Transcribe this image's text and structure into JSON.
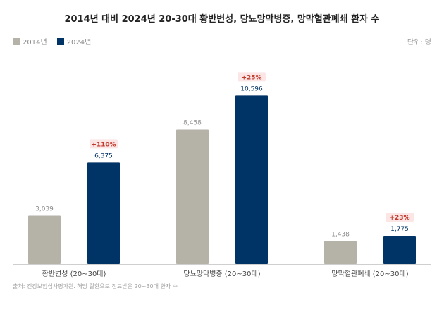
{
  "chart_data": {
    "type": "bar",
    "title": "2014년 대비 2024년 20-30대 황반변성, 당뇨망막병증, 망막혈관폐쇄 환자 수",
    "unit": "단위: 명",
    "categories": [
      "황반변성 (20~30대)",
      "당뇨망막병증 (20~30대)",
      "망막혈관폐쇄 (20~30대)"
    ],
    "series": [
      {
        "name": "2014년",
        "color": "#b5b2a8",
        "values": [
          3039,
          8458,
          1438
        ]
      },
      {
        "name": "2024년",
        "color": "#003366",
        "values": [
          6375,
          10596,
          1775
        ]
      }
    ],
    "value_labels": {
      "2014년": [
        "3,039",
        "8,458",
        "1,438"
      ],
      "2024년": [
        "6,375",
        "10,596",
        "1,775"
      ]
    },
    "changes": [
      "+110%",
      "+25%",
      "+23%"
    ],
    "ylim": [
      0,
      11500
    ],
    "grid": false,
    "legend_position": "top-left",
    "source": "출처: 건강보험심사평가원. 해당 질환으로 진료받은 20~30대 환자 수"
  }
}
